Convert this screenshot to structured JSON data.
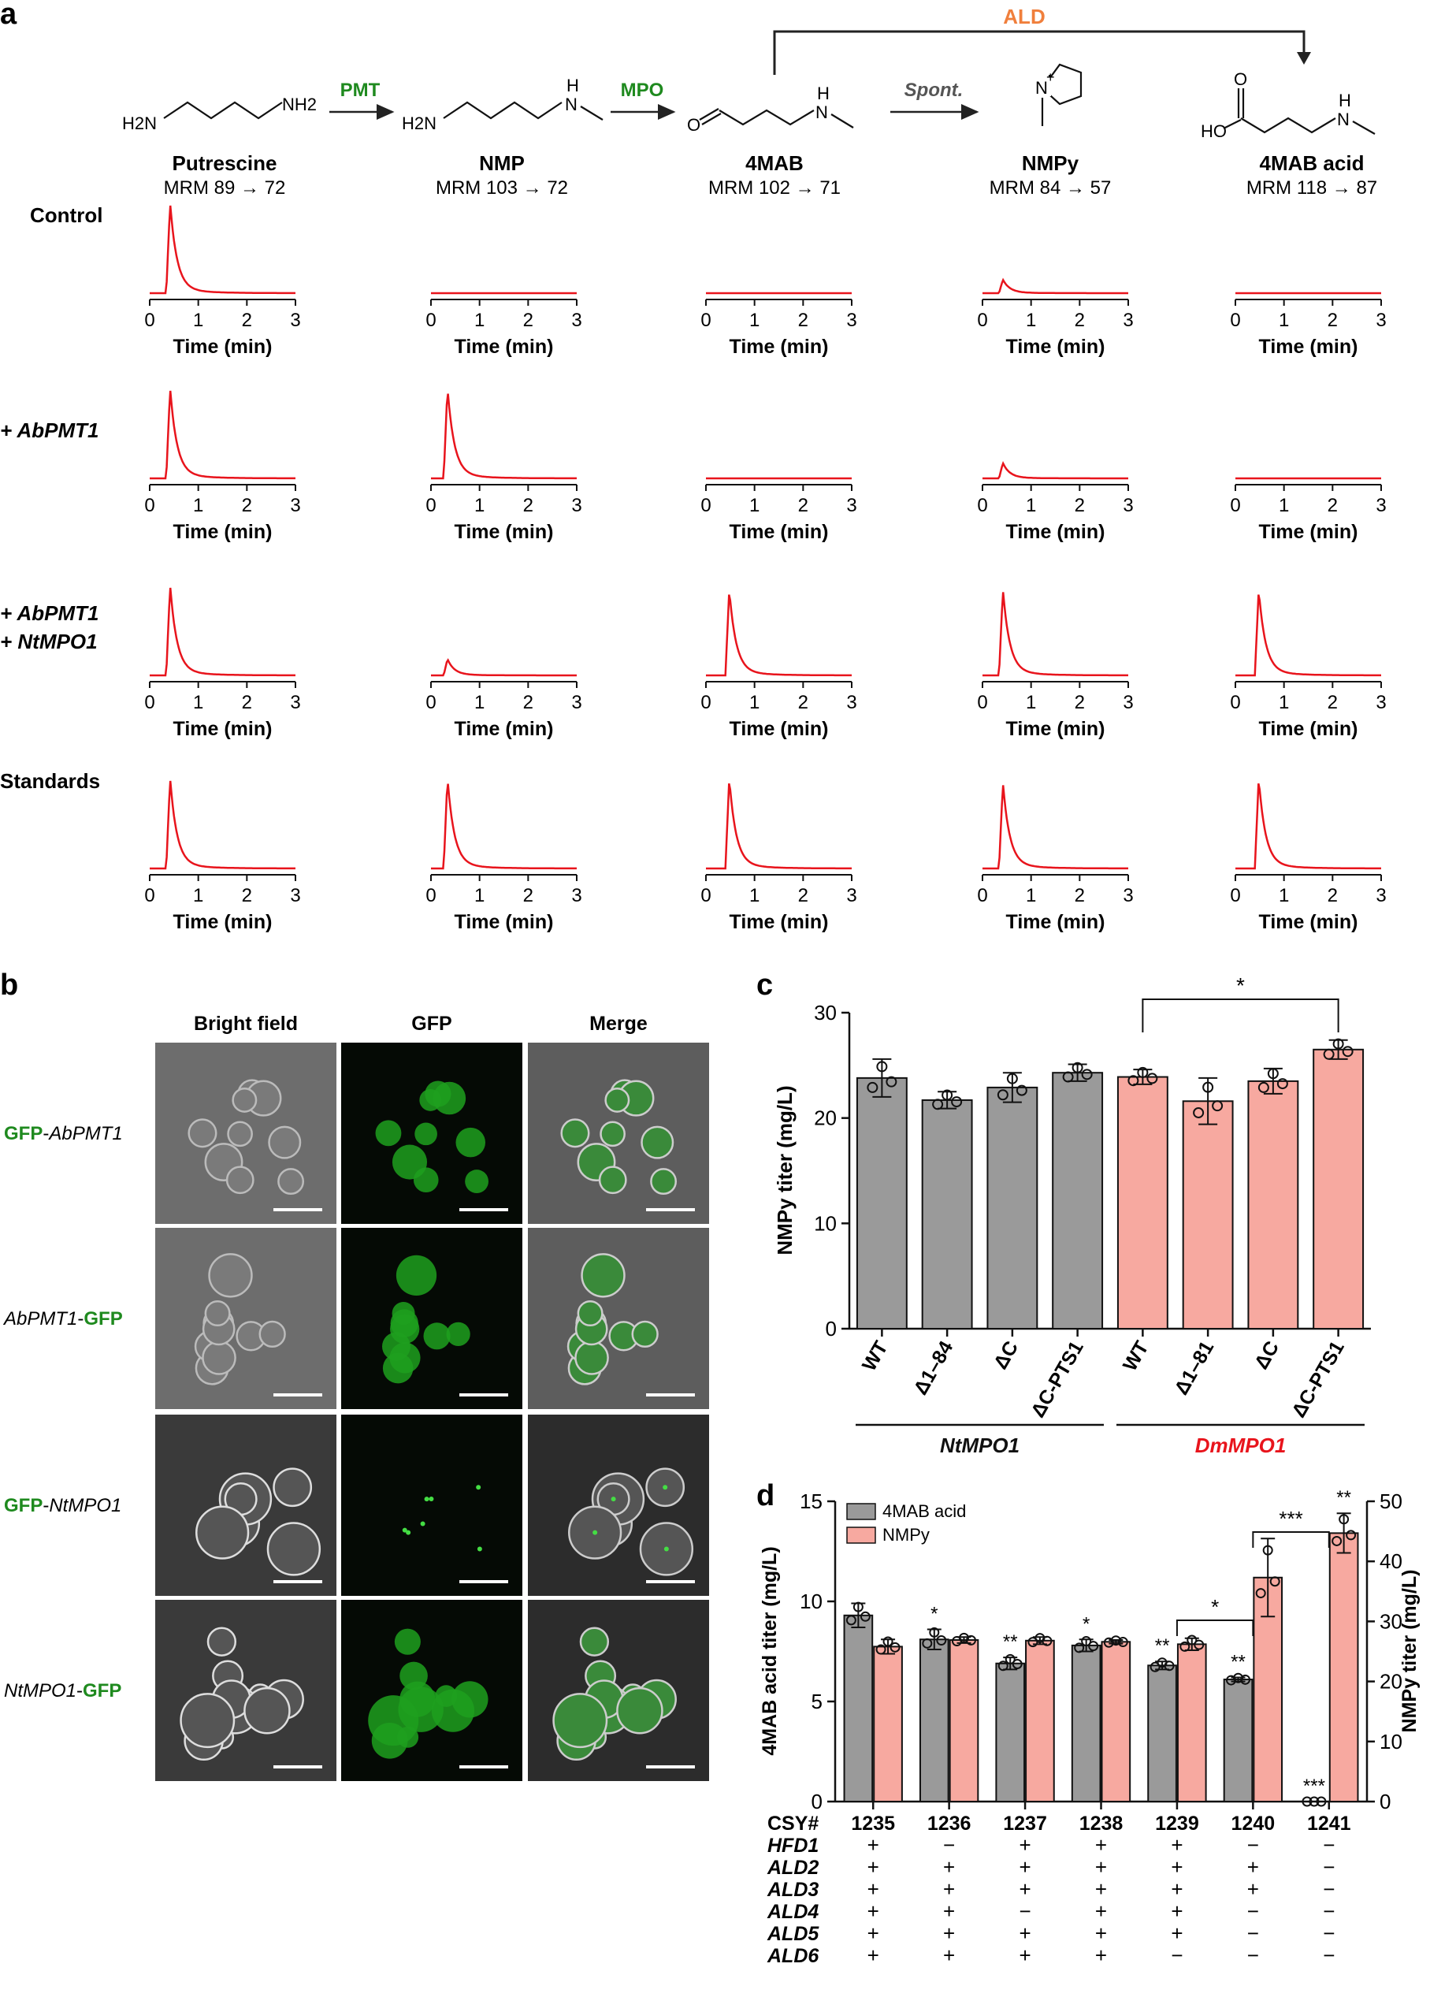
{
  "panel_letters": {
    "a": "a",
    "b": "b",
    "c": "c",
    "d": "d"
  },
  "colors": {
    "red": "#e8141c",
    "green": "#1f8a1f",
    "orange": "#f07f3c",
    "gray": "#9a9a9a",
    "salmon": "#f7a9a0",
    "dark": "#111111",
    "dm_red": "#e8141c"
  },
  "panel_a": {
    "enzymes": {
      "pmt": "PMT",
      "mpo": "MPO",
      "spont": "Spont.",
      "ald": "ALD"
    },
    "atom_labels": {
      "h2n": "H2N",
      "nh2": "NH2",
      "h": "H",
      "n": "N",
      "o": "O",
      "ho": "HO",
      "plus": "+"
    },
    "compounds": [
      {
        "name": "Putrescine",
        "mrm": "MRM 89 → 72"
      },
      {
        "name": "NMP",
        "mrm": "MRM 103 → 72"
      },
      {
        "name": "4MAB",
        "mrm": "MRM 102 → 71"
      },
      {
        "name": "NMPy",
        "mrm": "MRM 84 → 57"
      },
      {
        "name": "4MAB acid",
        "mrm": "MRM 118 → 87"
      }
    ],
    "rows": [
      {
        "label_lines": [
          "Control"
        ],
        "italic": false,
        "peaks": [
          1.0,
          0.0,
          0.0,
          0.15,
          0.0
        ]
      },
      {
        "label_lines": [
          "+ AbPMT1"
        ],
        "italic": true,
        "peaks": [
          1.0,
          1.0,
          0.0,
          0.17,
          0.0
        ]
      },
      {
        "label_lines": [
          "+ AbPMT1",
          "+ NtMPO1"
        ],
        "italic": true,
        "peaks": [
          1.0,
          0.18,
          0.95,
          0.95,
          0.95
        ]
      },
      {
        "label_lines": [
          "Standards"
        ],
        "italic": false,
        "peaks": [
          1.0,
          1.0,
          1.0,
          0.95,
          1.0
        ]
      }
    ],
    "axis": {
      "ticks": [
        "0",
        "1",
        "2",
        "3"
      ],
      "xlabel": "Time (min)",
      "xlim": [
        0,
        3
      ]
    }
  },
  "panel_b": {
    "columns": [
      "Bright field",
      "GFP",
      "Merge"
    ],
    "rows": [
      {
        "tag": "GFP",
        "gene": "AbPMT1",
        "order": "tag-first",
        "pattern": "diffuse"
      },
      {
        "tag": "GFP",
        "gene": "AbPMT1",
        "order": "gene-first",
        "pattern": "diffuse"
      },
      {
        "tag": "GFP",
        "gene": "NtMPO1",
        "order": "tag-first",
        "pattern": "punctate"
      },
      {
        "tag": "GFP",
        "gene": "NtMPO1",
        "order": "gene-first",
        "pattern": "diffuse"
      }
    ]
  },
  "chart_data": [
    {
      "type": "bar",
      "panel": "c",
      "ylabel": "NMPy titer (mg/L)",
      "ylim": [
        0,
        30
      ],
      "yticks": [
        "0",
        "10",
        "20",
        "30"
      ],
      "categories": [
        "WT",
        "Δ1–84",
        "ΔC",
        "ΔC-PTS1",
        "WT",
        "Δ1–81",
        "ΔC",
        "ΔC-PTS1"
      ],
      "values": [
        23.8,
        21.7,
        22.9,
        24.3,
        23.9,
        21.6,
        23.5,
        26.5
      ],
      "errors": [
        1.8,
        0.8,
        1.4,
        0.8,
        0.7,
        2.2,
        1.2,
        0.9
      ],
      "colors": [
        "#9a9a9a",
        "#9a9a9a",
        "#9a9a9a",
        "#9a9a9a",
        "#f7a9a0",
        "#f7a9a0",
        "#f7a9a0",
        "#f7a9a0"
      ],
      "groups": [
        {
          "label": "NtMPO1",
          "range": [
            0,
            3
          ]
        },
        {
          "label": "DmMPO1",
          "range": [
            4,
            7
          ]
        }
      ],
      "significance": [
        {
          "from": 4,
          "to": 7,
          "label": "*"
        }
      ]
    },
    {
      "type": "bar",
      "panel": "d",
      "ylabel_left": "4MAB acid titer (mg/L)",
      "ylabel_right": "NMPy titer (mg/L)",
      "ylim_left": [
        0,
        15
      ],
      "ylim_right": [
        0,
        50
      ],
      "yticks_left": [
        "0",
        "5",
        "10",
        "15"
      ],
      "yticks_right": [
        "0",
        "10",
        "20",
        "30",
        "40",
        "50"
      ],
      "series": [
        {
          "name": "4MAB acid",
          "axis": "left",
          "color": "#9a9a9a",
          "values": [
            9.3,
            8.1,
            6.9,
            7.8,
            6.8,
            6.1,
            0
          ],
          "errors": [
            0.6,
            0.5,
            0.3,
            0.3,
            0.2,
            0.1,
            0
          ]
        },
        {
          "name": "NMPy",
          "axis": "right",
          "color": "#f7a9a0",
          "values": [
            25.8,
            26.9,
            26.8,
            26.6,
            26.2,
            37.3,
            44.7
          ],
          "errors": [
            1.2,
            0.5,
            0.6,
            0.3,
            1.0,
            6.5,
            3.3
          ]
        }
      ],
      "stars_4mab": [
        "",
        "*",
        "**",
        "*",
        "**",
        "**",
        "***"
      ],
      "stars_nmpy": [
        "",
        "",
        "",
        "",
        "",
        "",
        "**"
      ],
      "significance": [
        {
          "from": 4,
          "to": 5,
          "label": "*"
        },
        {
          "from": 5,
          "to": 6,
          "label": "***"
        }
      ],
      "table": {
        "header": "CSY#",
        "strains": [
          "1235",
          "1236",
          "1237",
          "1238",
          "1239",
          "1240",
          "1241"
        ],
        "genes": [
          {
            "gene": "HFD1",
            "states": [
              "+",
              "−",
              "+",
              "+",
              "+",
              "−",
              "−"
            ]
          },
          {
            "gene": "ALD2",
            "states": [
              "+",
              "+",
              "+",
              "+",
              "+",
              "+",
              "−"
            ]
          },
          {
            "gene": "ALD3",
            "states": [
              "+",
              "+",
              "+",
              "+",
              "+",
              "+",
              "−"
            ]
          },
          {
            "gene": "ALD4",
            "states": [
              "+",
              "+",
              "−",
              "+",
              "+",
              "−",
              "−"
            ]
          },
          {
            "gene": "ALD5",
            "states": [
              "+",
              "+",
              "+",
              "+",
              "+",
              "−",
              "−"
            ]
          },
          {
            "gene": "ALD6",
            "states": [
              "+",
              "+",
              "+",
              "+",
              "−",
              "−",
              "−"
            ]
          }
        ]
      }
    }
  ]
}
